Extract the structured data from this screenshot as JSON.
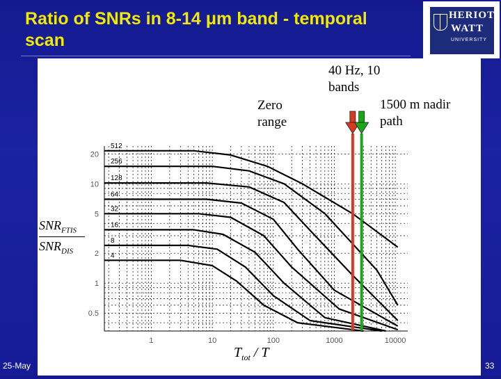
{
  "slide": {
    "title_line1": "Ratio of SNRs in 8-14 μm band - temporal",
    "title_line2": "scan",
    "footer_date": "25-May",
    "page_number": "33"
  },
  "logo": {
    "line1": "HERIOT",
    "line2": "WATT",
    "line3": "UNIVERSITY"
  },
  "colors": {
    "background": "#1a22a0",
    "title": "#f2e900",
    "marker_red": "#d9381e",
    "marker_green": "#1aa51a"
  },
  "annotations": {
    "zero_range": "Zero\nrange",
    "rate": "40 Hz, 10\nbands",
    "nadir": "1500 m nadir\npath"
  },
  "chart_data": {
    "type": "line",
    "x_scale": "log",
    "y_scale": "log",
    "xlim": [
      0.17,
      16000
    ],
    "ylim": [
      0.33,
      24
    ],
    "x_ticks": [
      1,
      10,
      100,
      1000,
      10000
    ],
    "x_tick_labels": [
      "1",
      "10",
      "100",
      "1000",
      "10000"
    ],
    "y_ticks": [
      0.5,
      1,
      2,
      5,
      10,
      20
    ],
    "y_tick_labels": [
      "0.5",
      "1",
      "2",
      "5",
      "10",
      "20"
    ],
    "xlabel_main": "T",
    "xlabel_sub": "tot",
    "xlabel_tail": " / T",
    "ylabel": {
      "num": "SNR",
      "num_sub": "FTIS",
      "den": "SNR",
      "den_sub": "DIS"
    },
    "grid": true,
    "curve_labels": [
      "512",
      "256",
      "128",
      "64",
      "32",
      "16",
      "8",
      "4"
    ],
    "series": [
      {
        "name": "512",
        "x": [
          0.17,
          5,
          20,
          80,
          300,
          2000,
          11000
        ],
        "y": [
          21.5,
          21.5,
          19.5,
          15,
          10,
          5,
          2.3
        ]
      },
      {
        "name": "256",
        "x": [
          0.17,
          10,
          40,
          150,
          700,
          5000,
          11000
        ],
        "y": [
          15,
          15,
          13.5,
          10,
          5,
          1.35,
          0.6
        ]
      },
      {
        "name": "128",
        "x": [
          0.17,
          8,
          40,
          150,
          400,
          2000,
          11000
        ],
        "y": [
          10.2,
          10.2,
          9.3,
          6.5,
          3.4,
          1.2,
          0.42
        ]
      },
      {
        "name": "64",
        "x": [
          0.17,
          8,
          30,
          100,
          250,
          1000,
          11000
        ],
        "y": [
          7,
          7,
          6.4,
          4.4,
          2.2,
          0.85,
          0.37
        ]
      },
      {
        "name": "32",
        "x": [
          0.17,
          6,
          20,
          70,
          200,
          1200,
          11000
        ],
        "y": [
          5,
          5,
          4.6,
          3,
          1.45,
          0.55,
          0.34
        ]
      },
      {
        "name": "16",
        "x": [
          0.17,
          5,
          15,
          50,
          150,
          700,
          7000
        ],
        "y": [
          3.45,
          3.45,
          3.1,
          2.05,
          1.0,
          0.45,
          0.33
        ]
      },
      {
        "name": "8",
        "x": [
          0.17,
          4,
          12,
          35,
          100,
          400,
          6000
        ],
        "y": [
          2.4,
          2.4,
          2.2,
          1.45,
          0.75,
          0.42,
          0.33
        ]
      },
      {
        "name": "4",
        "x": [
          0.17,
          3,
          10,
          25,
          70,
          250,
          3000
        ],
        "y": [
          1.7,
          1.7,
          1.5,
          1.05,
          0.6,
          0.4,
          0.33
        ]
      }
    ],
    "markers": [
      {
        "name": "red",
        "x": 2000,
        "color": "#d9381e"
      },
      {
        "name": "green",
        "x": 2800,
        "color": "#1aa51a"
      }
    ]
  }
}
